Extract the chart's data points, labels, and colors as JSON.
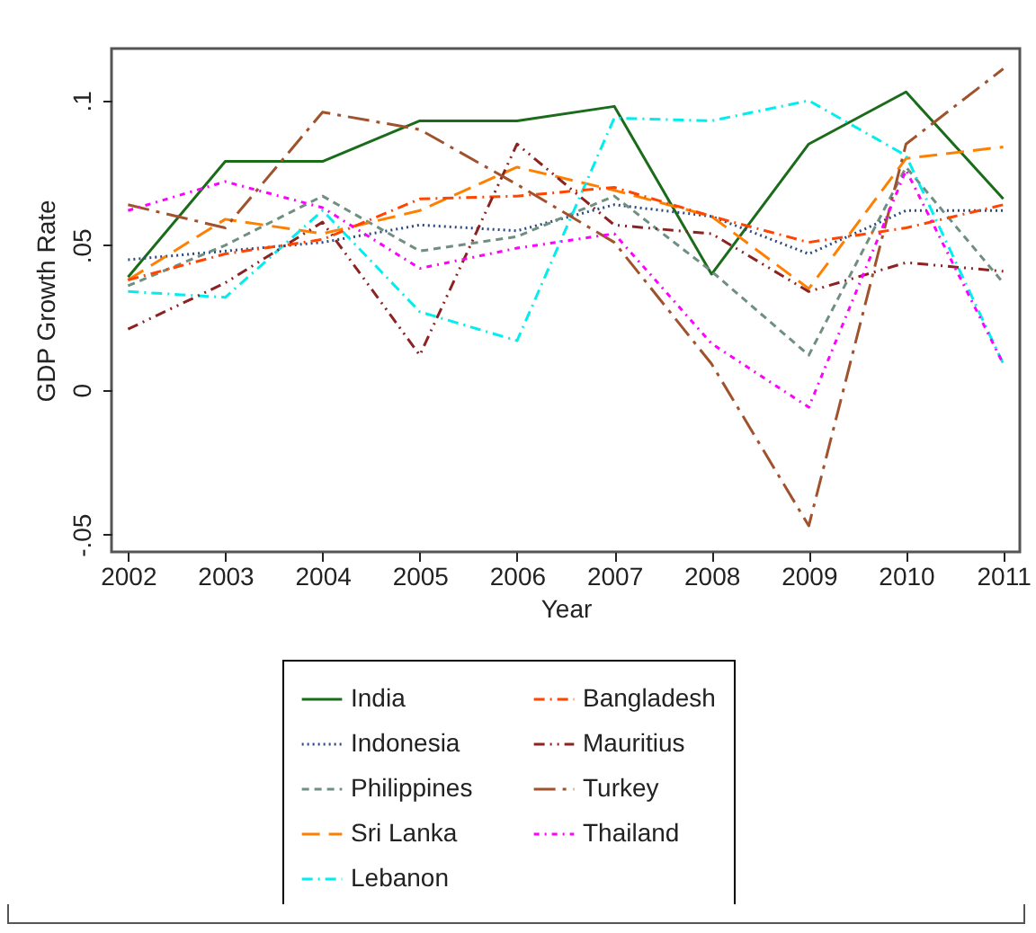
{
  "chart_data": {
    "type": "line",
    "xlabel": "Year",
    "ylabel": "GDP Growth Rate",
    "x": [
      2002,
      2003,
      2004,
      2005,
      2006,
      2007,
      2008,
      2009,
      2010,
      2011
    ],
    "xlim": [
      2001.83,
      2011.17
    ],
    "xticks": [
      2002,
      2003,
      2004,
      2005,
      2006,
      2007,
      2008,
      2009,
      2010,
      2011
    ],
    "ylim": [
      -0.056,
      0.118
    ],
    "yticks": [
      {
        "value": -0.05,
        "label": "-.05"
      },
      {
        "value": 0,
        "label": "0"
      },
      {
        "value": 0.05,
        "label": ".05"
      },
      {
        "value": 0.1,
        "label": ".1"
      }
    ],
    "grid": false,
    "legend": "bottom",
    "marker": "none",
    "series": [
      {
        "name": "India",
        "color": "#1a6b1a",
        "line_style": "solid",
        "values": [
          0.039,
          0.079,
          0.079,
          0.093,
          0.093,
          0.098,
          0.04,
          0.085,
          0.103,
          0.066
        ]
      },
      {
        "name": "Indonesia",
        "color": "#2a4a80",
        "line_style": "dotted",
        "values": [
          0.045,
          0.048,
          0.051,
          0.057,
          0.055,
          0.064,
          0.06,
          0.047,
          0.062,
          0.062
        ]
      },
      {
        "name": "Philippines",
        "color": "#6f8f80",
        "line_style": "dashed",
        "values": [
          0.036,
          0.05,
          0.067,
          0.048,
          0.053,
          0.067,
          0.041,
          0.012,
          0.077,
          0.037
        ]
      },
      {
        "name": "Sri Lanka",
        "color": "#ff8000",
        "line_style": "dashed",
        "values": [
          0.038,
          0.059,
          0.054,
          0.062,
          0.077,
          0.069,
          0.06,
          0.035,
          0.08,
          0.084
        ]
      },
      {
        "name": "Lebanon",
        "color": "#00eeee",
        "line_style": "dashed",
        "values": [
          0.034,
          0.032,
          0.062,
          0.027,
          0.017,
          0.094,
          0.093,
          0.1,
          0.081,
          0.009
        ]
      },
      {
        "name": "Bangladesh",
        "color": "#ff4500",
        "line_style": "dashed",
        "values": [
          0.038,
          0.047,
          0.052,
          0.066,
          0.067,
          0.07,
          0.06,
          0.051,
          0.056,
          0.064
        ]
      },
      {
        "name": "Mauritius",
        "color": "#8b2323",
        "line_style": "dashed",
        "values": [
          0.021,
          0.037,
          0.058,
          0.012,
          0.085,
          0.057,
          0.054,
          0.034,
          0.044,
          0.041
        ]
      },
      {
        "name": "Turkey",
        "color": "#a0522d",
        "line_style": "dashed",
        "values": [
          0.064,
          0.056,
          0.096,
          0.09,
          0.071,
          0.051,
          0.009,
          -0.047,
          0.085,
          0.111
        ]
      },
      {
        "name": "Thailand",
        "color": "#ff00ff",
        "line_style": "dashed",
        "values": [
          0.062,
          0.072,
          0.063,
          0.042,
          0.049,
          0.054,
          0.016,
          -0.006,
          0.076,
          0.009
        ]
      }
    ]
  }
}
